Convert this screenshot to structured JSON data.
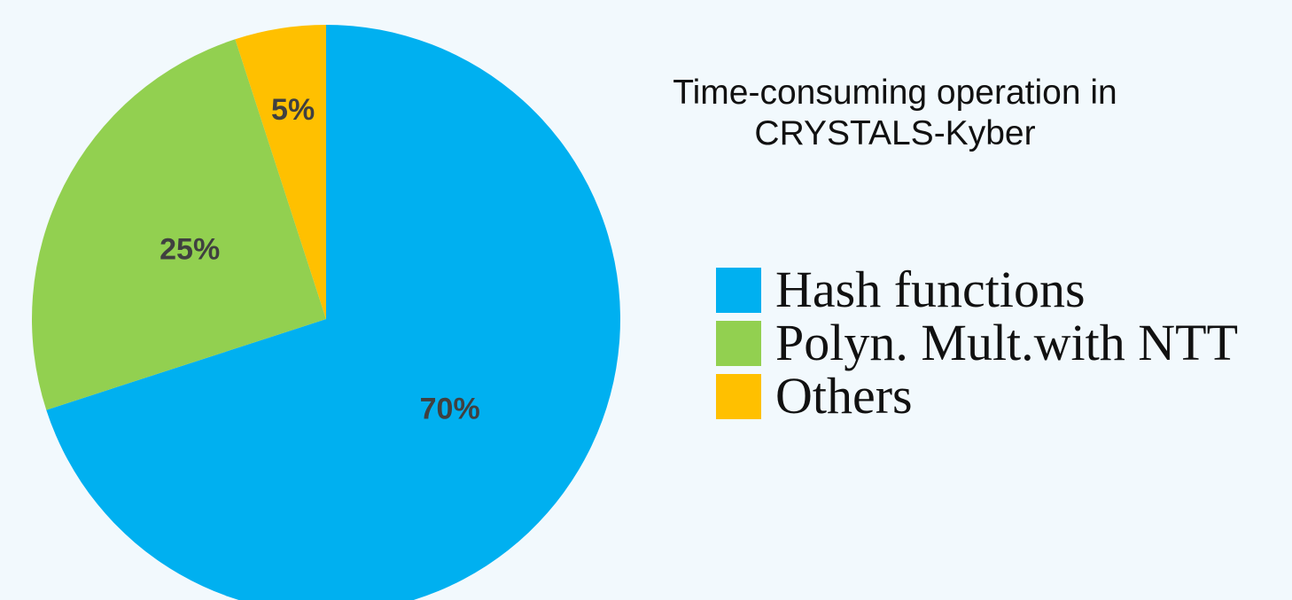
{
  "chart_data": {
    "type": "pie",
    "title_lines": [
      "Time-consuming operation in",
      "CRYSTALS-Kyber"
    ],
    "slices": [
      {
        "name": "Hash functions",
        "value": 70,
        "label": "70%",
        "color": "#00b0f0"
      },
      {
        "name": "Polyn. Mult.with NTT",
        "value": 25,
        "label": "25%",
        "color": "#92d050"
      },
      {
        "name": "Others",
        "value": 5,
        "label": "5%",
        "color": "#ffc000"
      }
    ],
    "start_angle": "12 o'clock",
    "direction": "clockwise",
    "legend_position": "right"
  }
}
